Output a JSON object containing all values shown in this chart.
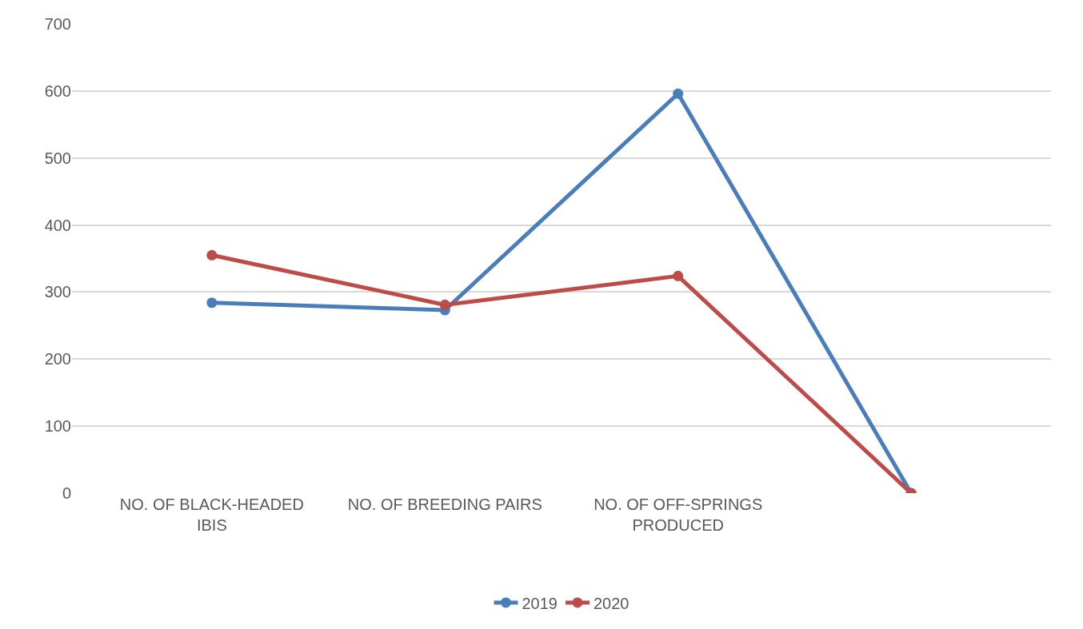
{
  "chart_data": {
    "type": "line",
    "categories": [
      "NO. OF BLACK-HEADED IBIS",
      "NO. OF BREEDING PAIRS",
      "NO. OF OFF-SPRINGS PRODUCED",
      null
    ],
    "series": [
      {
        "name": "2019",
        "color": "#4a7ebb",
        "values": [
          284,
          273,
          596,
          0
        ]
      },
      {
        "name": "2020",
        "color": "#be4b48",
        "values": [
          355,
          281,
          324,
          0
        ]
      }
    ],
    "ylim": [
      0,
      700
    ],
    "yticks": [
      0,
      100,
      200,
      300,
      400,
      500,
      600,
      700
    ],
    "grid": "y",
    "legend": "bottom",
    "marker": "circle",
    "line_style": "solid"
  }
}
